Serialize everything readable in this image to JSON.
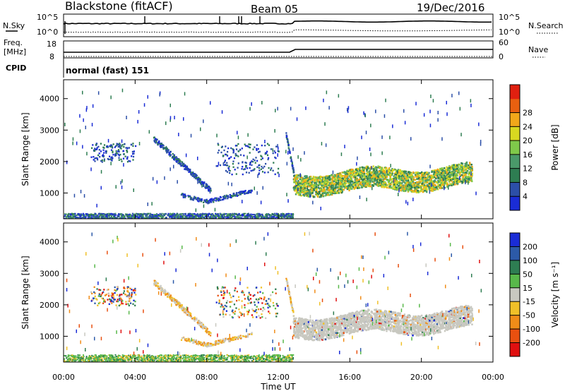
{
  "header": {
    "station": "Blackstone (fitACF)",
    "beam": "Beam 05",
    "date": "19/Dec/2016"
  },
  "top_panels": {
    "left_labels": [
      "N.Sky",
      "10^5",
      "10^0",
      "Freq.",
      "[MHz]",
      "18",
      "8",
      "CPID"
    ],
    "right_labels": [
      "10^5",
      "10^0",
      "N.Search",
      "60",
      "0",
      "Nave"
    ],
    "cpid_text": "normal (fast) 151"
  },
  "chart_data": [
    {
      "type": "heatmap",
      "name": "Power",
      "ylabel": "Slant Range [km]",
      "xlabel": "Time UT",
      "x_ticks": [
        "00:00",
        "04:00",
        "08:00",
        "12:00",
        "16:00",
        "20:00",
        "00:00"
      ],
      "x_range_hours": [
        0,
        24
      ],
      "y_range_km": [
        180,
        4600
      ],
      "y_ticks": [
        1000,
        2000,
        3000,
        4000
      ],
      "colorbar_label": "Power [dB]",
      "colorbar_ticks": [
        "4",
        "8",
        "12",
        "16",
        "20",
        "24",
        "28"
      ],
      "colorbar_colors": [
        "#1a2cd6",
        "#2c4fa8",
        "#2e7d52",
        "#4a9a6a",
        "#7fc94a",
        "#d8d820",
        "#f2a81a",
        "#e86010",
        "#e02010"
      ],
      "features": [
        {
          "desc": "ground scatter band",
          "t": [
            0,
            12.8
          ],
          "range_km": [
            200,
            320
          ]
        },
        {
          "desc": "descending arc",
          "t": [
            5.0,
            8.2
          ],
          "range_km": [
            2700,
            1000
          ]
        },
        {
          "desc": "ionospheric band",
          "t": [
            12.8,
            22.8
          ],
          "range_km": [
            1200,
            1700
          ]
        }
      ]
    },
    {
      "type": "heatmap",
      "name": "Velocity",
      "ylabel": "Slant Range [km]",
      "xlabel": "Time UT",
      "x_ticks": [
        "00:00",
        "04:00",
        "08:00",
        "12:00",
        "16:00",
        "20:00",
        "00:00"
      ],
      "x_range_hours": [
        0,
        24
      ],
      "y_range_km": [
        180,
        4600
      ],
      "y_ticks": [
        1000,
        2000,
        3000,
        4000
      ],
      "colorbar_label": "Velocity [m s⁻¹]",
      "colorbar_ticks": [
        "200",
        "100",
        "50",
        "15",
        "-15",
        "-50",
        "-100",
        "-200"
      ],
      "colorbar_colors": [
        "#1a2cd6",
        "#2c5aa8",
        "#2e7d52",
        "#58b84a",
        "#c8c8c0",
        "#f0c028",
        "#f08c18",
        "#e85010",
        "#e01010"
      ]
    }
  ]
}
